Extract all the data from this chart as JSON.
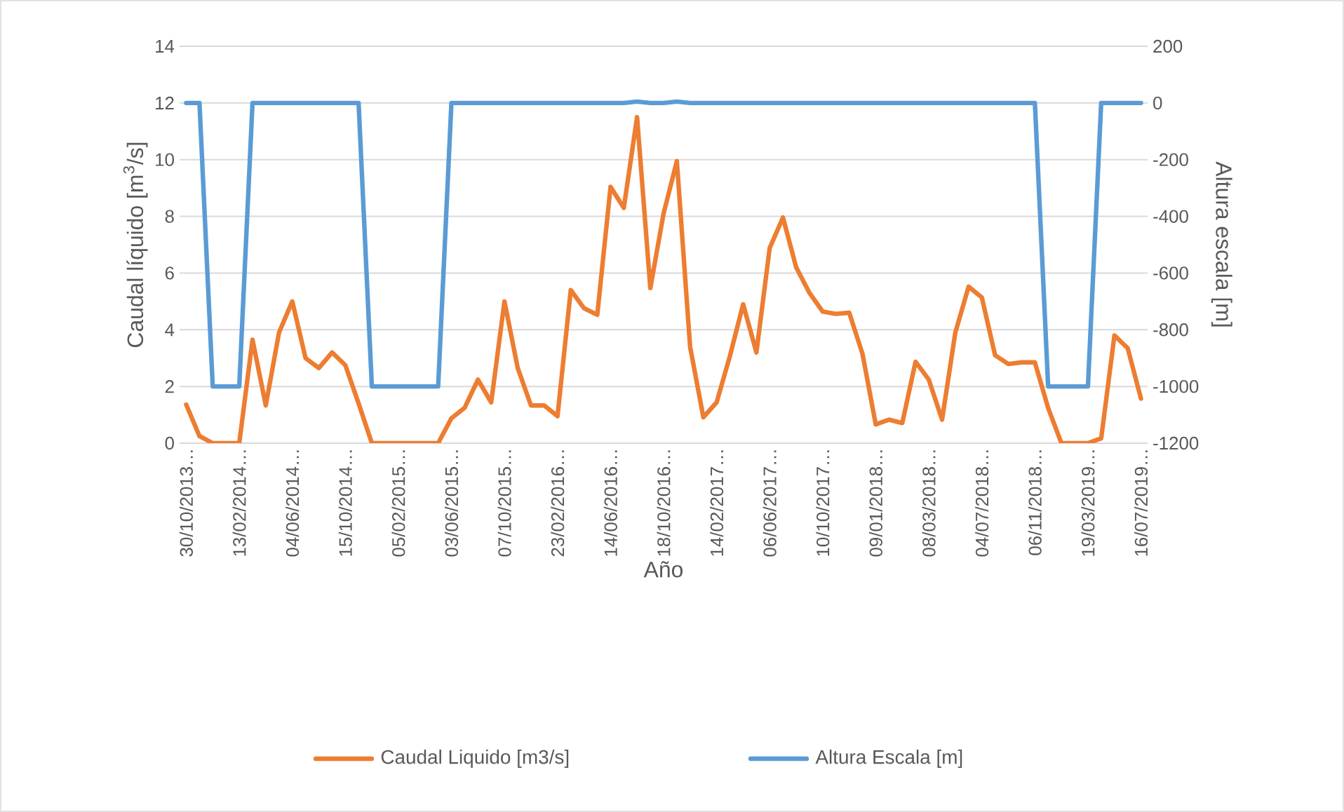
{
  "chart_data": {
    "type": "line",
    "categories": [
      "30/10/2013…",
      null,
      null,
      null,
      "13/02/2014…",
      null,
      null,
      null,
      "04/06/2014…",
      null,
      null,
      null,
      "15/10/2014…",
      null,
      null,
      null,
      "05/02/2015…",
      null,
      null,
      null,
      "03/06/2015…",
      null,
      null,
      null,
      "07/10/2015…",
      null,
      null,
      null,
      "23/02/2016…",
      null,
      null,
      null,
      "14/06/2016…",
      null,
      null,
      null,
      "18/10/2016…",
      null,
      null,
      null,
      "14/02/2017…",
      null,
      null,
      null,
      "06/06/2017…",
      null,
      null,
      null,
      "10/10/2017…",
      null,
      null,
      null,
      "09/01/2018…",
      null,
      null,
      null,
      "08/03/2018…",
      null,
      null,
      null,
      "04/07/2018…",
      null,
      null,
      null,
      "06/11/2018…",
      null,
      null,
      null,
      "19/03/2019…",
      null,
      null,
      null,
      "16/07/2019…"
    ],
    "xlabel": "Año",
    "ylabel": "Caudal líquido [m$^{3}$/s]",
    "y2label": "Altura escala [m]",
    "ylim": [
      0,
      14
    ],
    "yticks": [
      0,
      2,
      4,
      6,
      8,
      10,
      12,
      14
    ],
    "y2lim": [
      -1200,
      200
    ],
    "y2ticks": [
      -1200,
      -1000,
      -800,
      -600,
      -400,
      -200,
      0,
      200
    ],
    "grid": "y",
    "legend": "bottom",
    "line_style": "solid",
    "marker": "none",
    "series": [
      {
        "name": "Caudal Liquido [m3/s]",
        "color": "#ed7d31",
        "values": [
          1.36,
          0.25,
          0,
          0,
          0,
          3.65,
          1.33,
          3.9,
          5.0,
          3.0,
          2.65,
          3.2,
          2.75,
          1.4,
          0,
          0,
          0,
          0,
          0,
          0,
          0.88,
          1.25,
          2.24,
          1.44,
          5.0,
          2.65,
          1.33,
          1.33,
          0.95,
          5.4,
          4.76,
          4.53,
          9.04,
          8.3,
          11.5,
          5.47,
          8.1,
          9.95,
          3.4,
          0.91,
          1.44,
          3.07,
          4.9,
          3.2,
          6.88,
          7.96,
          6.2,
          5.3,
          4.64,
          4.56,
          4.6,
          3.15,
          0.66,
          0.83,
          0.71,
          2.87,
          2.24,
          0.83,
          3.9,
          5.52,
          5.14,
          3.1,
          2.79,
          2.85,
          2.85,
          1.24,
          0,
          0,
          0,
          0.17,
          3.8,
          3.35,
          1.57
        ]
      },
      {
        "name": "Altura Escala [m]",
        "color": "#5b9bd5",
        "axis": "y2",
        "values": [
          0,
          0,
          -1000,
          -1000,
          -1000,
          0,
          0,
          0,
          0,
          0,
          0,
          0,
          0,
          0,
          -1000,
          -1000,
          -1000,
          -1000,
          -1000,
          -1000,
          0,
          0,
          0,
          0,
          0,
          0,
          0,
          0,
          0,
          0,
          0,
          0,
          0,
          0,
          5,
          0,
          0,
          5,
          0,
          0,
          0,
          0,
          0,
          0,
          0,
          0,
          0,
          0,
          0,
          0,
          0,
          0,
          0,
          0,
          0,
          0,
          0,
          0,
          0,
          0,
          0,
          0,
          0,
          0,
          0,
          -1000,
          -1000,
          -1000,
          -1000,
          0,
          0,
          0,
          0
        ]
      }
    ]
  }
}
